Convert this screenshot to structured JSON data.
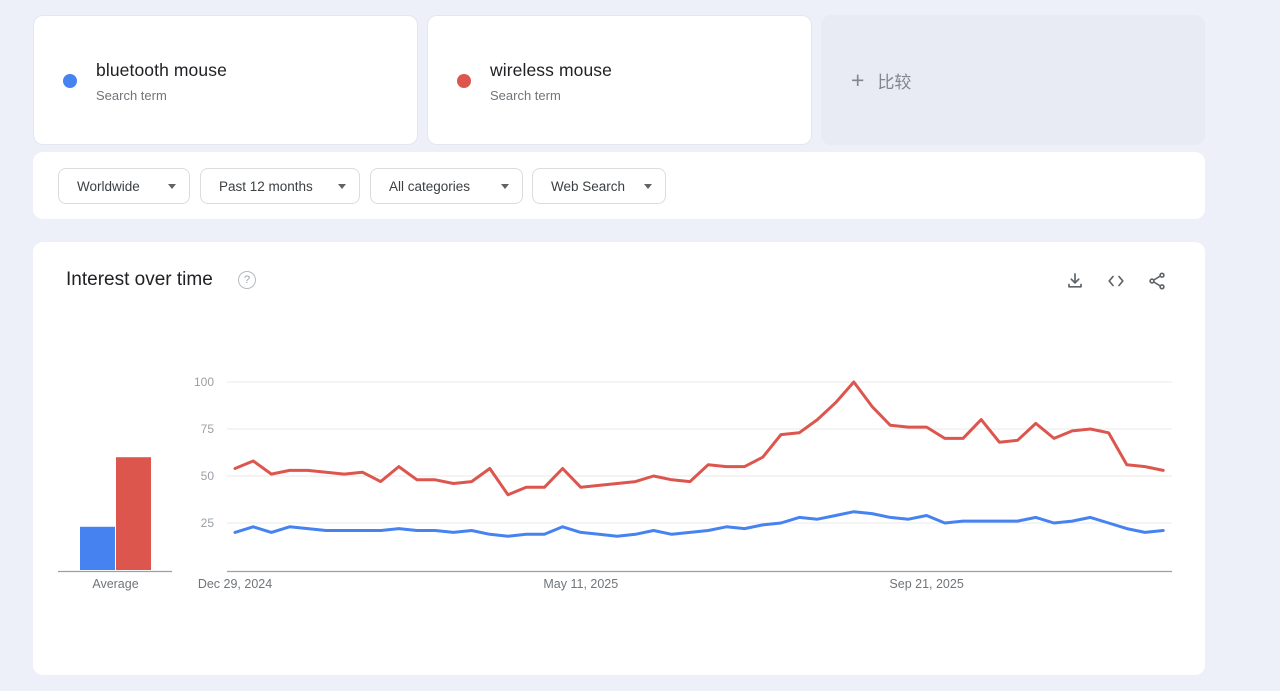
{
  "terms": [
    {
      "keyword": "bluetooth mouse",
      "type_label": "Search term",
      "color": "#4683f0"
    },
    {
      "keyword": "wireless mouse",
      "type_label": "Search term",
      "color": "#dd564e"
    }
  ],
  "compare_card": {
    "plus_glyph": "+",
    "label": "比较"
  },
  "filters": {
    "items": [
      {
        "label": "Worldwide"
      },
      {
        "label": "Past 12 months"
      },
      {
        "label": "All categories"
      },
      {
        "label": "Web Search"
      }
    ]
  },
  "chart_header": {
    "title": "Interest over time",
    "help_glyph": "?",
    "icons": [
      "download",
      "embed-code",
      "share"
    ]
  },
  "chart_data": {
    "type": "line",
    "title": "Interest over time",
    "x_label": "",
    "y_label": "",
    "ylim": [
      0,
      100
    ],
    "y_ticks": [
      25,
      50,
      75,
      100
    ],
    "grid": true,
    "legend_position": "none",
    "points_per_series": 52,
    "x_ticks": [
      {
        "index": 0,
        "label": "Dec 29, 2024"
      },
      {
        "index": 19,
        "label": "May 11, 2025"
      },
      {
        "index": 38,
        "label": "Sep 21, 2025"
      }
    ],
    "average_label": "Average",
    "series": [
      {
        "name": "bluetooth mouse",
        "color": "#4683f0",
        "average": 23,
        "values": [
          20,
          23,
          20,
          23,
          22,
          21,
          21,
          21,
          21,
          22,
          21,
          21,
          20,
          21,
          19,
          18,
          19,
          19,
          23,
          20,
          19,
          18,
          19,
          21,
          19,
          20,
          21,
          23,
          22,
          24,
          25,
          28,
          27,
          29,
          31,
          30,
          28,
          27,
          29,
          25,
          26,
          26,
          26,
          26,
          28,
          25,
          26,
          28,
          25,
          22,
          20,
          21
        ]
      },
      {
        "name": "wireless mouse",
        "color": "#dd564e",
        "average": 60,
        "values": [
          54,
          58,
          51,
          53,
          53,
          52,
          51,
          52,
          47,
          55,
          48,
          48,
          46,
          47,
          54,
          40,
          44,
          44,
          54,
          44,
          45,
          46,
          47,
          50,
          48,
          47,
          56,
          55,
          55,
          60,
          72,
          73,
          80,
          89,
          100,
          87,
          77,
          76,
          76,
          70,
          70,
          80,
          68,
          69,
          78,
          70,
          74,
          75,
          73,
          56,
          55,
          53
        ]
      }
    ],
    "axis_colors": {
      "gridline": "#e8e8e8",
      "axis_line": "#9aa0a6",
      "y_tick_label": "#9aa0a6",
      "x_tick_label": "#70757a"
    }
  }
}
